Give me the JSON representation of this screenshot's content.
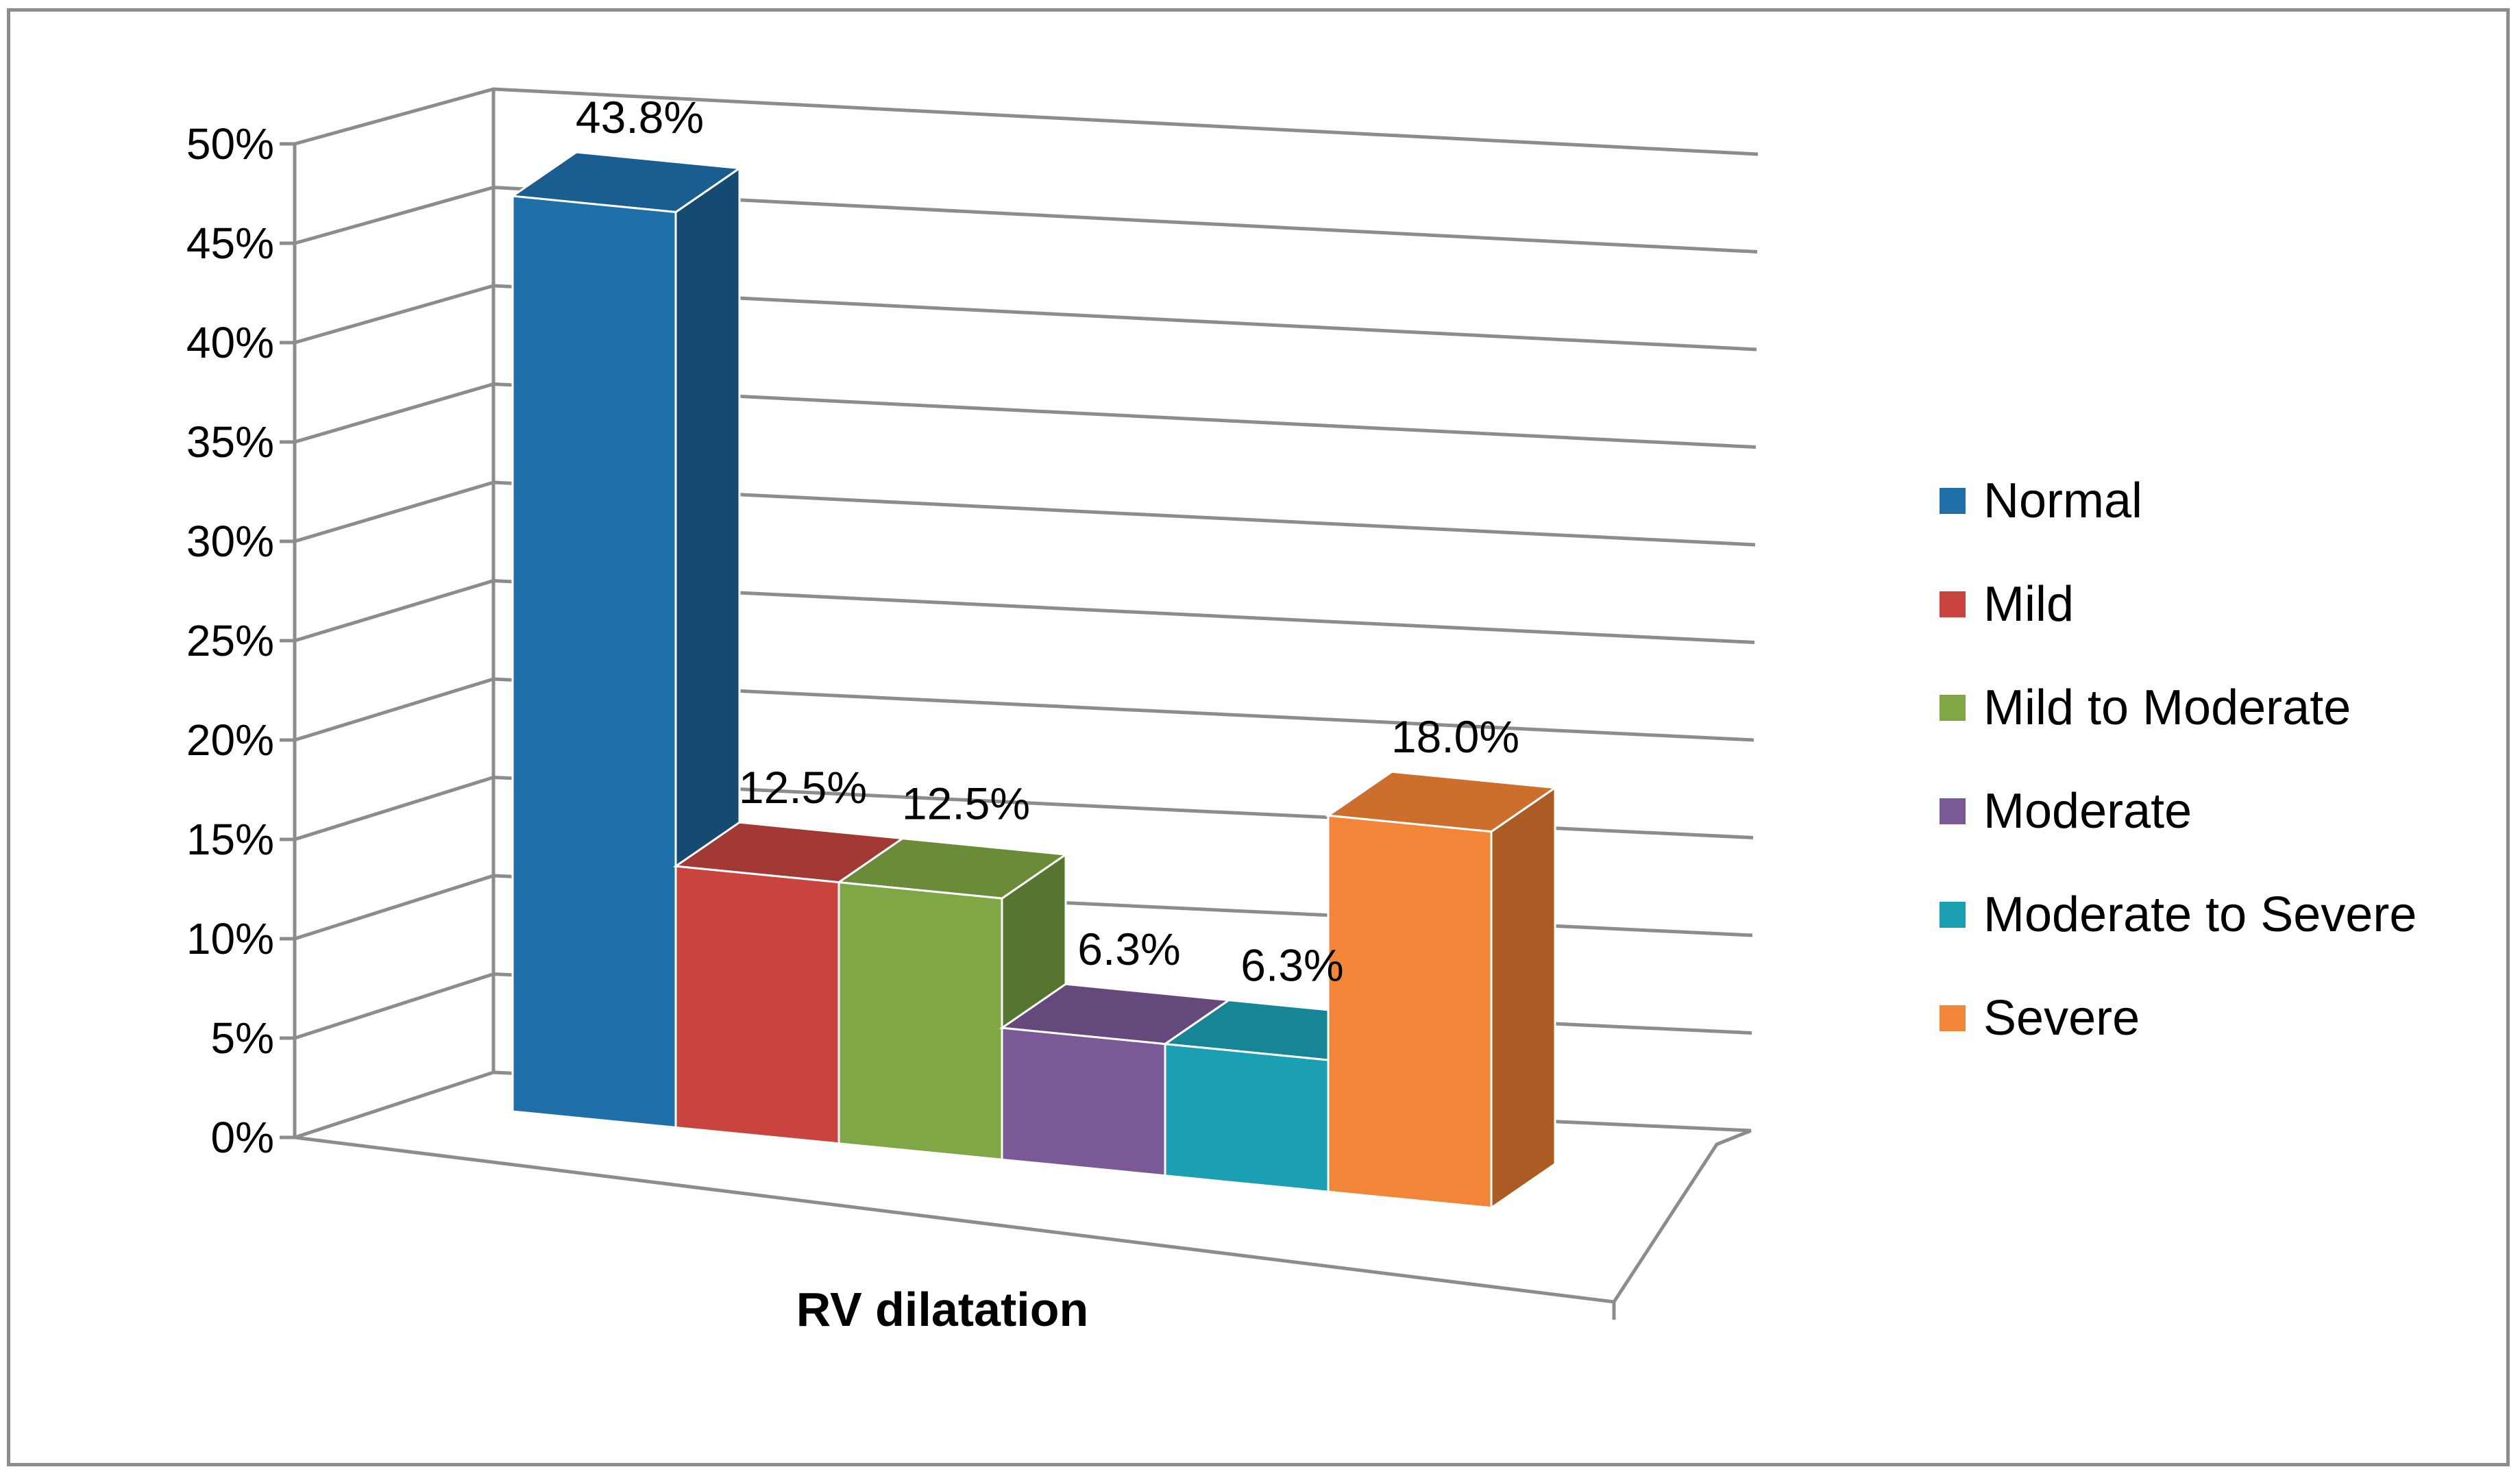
{
  "chart_data": {
    "type": "bar",
    "title": "",
    "xlabel": "RV dilatation",
    "ylabel": "",
    "ylim": [
      0,
      50
    ],
    "y_ticks": [
      "0%",
      "5%",
      "10%",
      "15%",
      "20%",
      "25%",
      "30%",
      "35%",
      "40%",
      "45%",
      "50%"
    ],
    "categories": [
      "Normal",
      "Mild",
      "Mild to Moderate",
      "Moderate",
      "Moderate to Severe",
      "Severe"
    ],
    "values": [
      43.8,
      12.5,
      12.5,
      6.3,
      6.3,
      18.0
    ],
    "value_labels": [
      "43.8%",
      "12.5%",
      "12.5%",
      "6.3%",
      "6.3%",
      "18.0%"
    ],
    "colors": [
      "#1f6fa8",
      "#c9443f",
      "#7fa745",
      "#7b5896",
      "#1b9fb3",
      "#f28537"
    ],
    "side_colors": [
      "#154a73",
      "#8e2d2a",
      "#557530",
      "#563d6a",
      "#127181",
      "#aa5c24"
    ],
    "top_colors": [
      "#1a5e91",
      "#a33935",
      "#6a8c39",
      "#65497d",
      "#168696",
      "#cc6f2d"
    ],
    "legend_position": "right",
    "grid": true
  },
  "legend": {
    "items": [
      {
        "label": "Normal",
        "color": "#1f6fa8"
      },
      {
        "label": "Mild",
        "color": "#c9443f"
      },
      {
        "label": "Mild to Moderate",
        "color": "#7fa745"
      },
      {
        "label": "Moderate",
        "color": "#7b5896"
      },
      {
        "label": "Moderate to Severe",
        "color": "#1b9fb3"
      },
      {
        "label": "Severe",
        "color": "#f28537"
      }
    ]
  }
}
